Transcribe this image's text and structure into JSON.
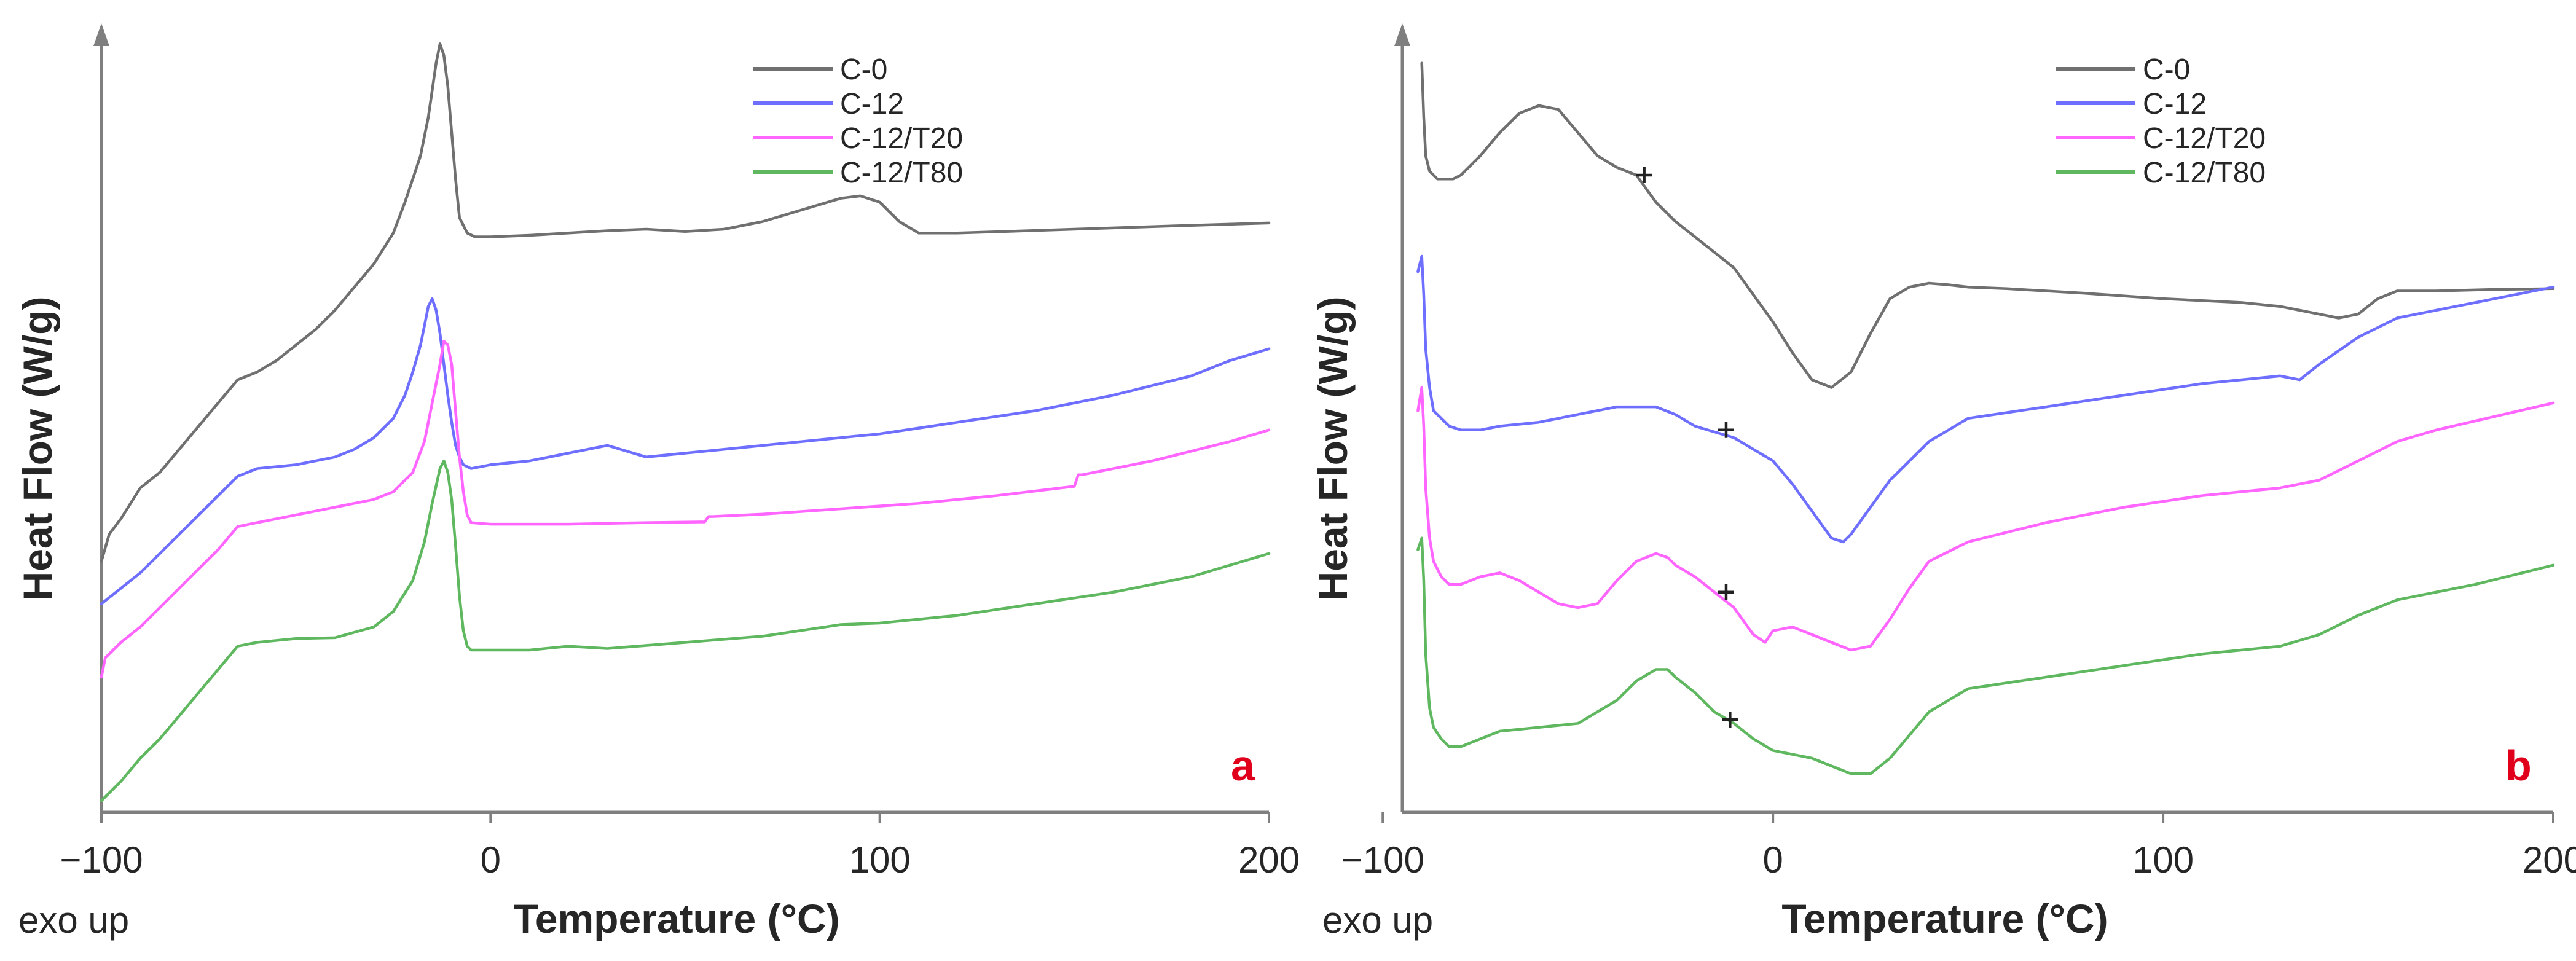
{
  "chart_data": [
    {
      "panel": "a",
      "type": "line",
      "title": "",
      "xlabel": "Temperature (°C)",
      "ylabel": "Heat Flow (W/g)",
      "note": "exo up",
      "xlim": [
        -100,
        200
      ],
      "xticks": [
        -100,
        0,
        100,
        200
      ],
      "ylim": [
        0,
        100
      ],
      "y_scale": "arbitrary units, curves offset vertically (0 = bottom of axis, 100 = top of axis)",
      "legend": [
        "C-0",
        "C-12",
        "C-12/T20",
        "C-12/T80"
      ],
      "legend_position": "top-right",
      "series": [
        {
          "name": "C-0",
          "color": "#707070",
          "x": [
            -100,
            -98,
            -95,
            -90,
            -85,
            -80,
            -75,
            -70,
            -65,
            -60,
            -55,
            -50,
            -45,
            -40,
            -35,
            -30,
            -25,
            -22,
            -20,
            -18,
            -16,
            -14,
            -13,
            -12,
            -11,
            -10,
            -9,
            -8,
            -6,
            -4,
            0,
            10,
            20,
            30,
            40,
            50,
            60,
            70,
            80,
            90,
            95,
            100,
            105,
            110,
            120,
            150,
            180,
            200
          ],
          "y": [
            32.5,
            36,
            38,
            42,
            44,
            47,
            50,
            53,
            56,
            57,
            58.5,
            60.5,
            62.5,
            65,
            68,
            71,
            75,
            79,
            82,
            85,
            90,
            97,
            99.5,
            98,
            94,
            88,
            82,
            77,
            75,
            74.5,
            74.5,
            74.7,
            75,
            75.3,
            75.5,
            75.2,
            75.5,
            76.5,
            78,
            79.5,
            79.8,
            79,
            76.5,
            75,
            75,
            75.5,
            76,
            76.3
          ]
        },
        {
          "name": "C-12",
          "color": "#6f6fff",
          "x": [
            -100,
            -95,
            -90,
            -85,
            -80,
            -75,
            -70,
            -65,
            -60,
            -50,
            -40,
            -35,
            -30,
            -25,
            -22,
            -20,
            -18,
            -17,
            -16,
            -15,
            -14,
            -13,
            -12,
            -11,
            -10,
            -9,
            -8,
            -7,
            -5,
            0,
            10,
            20,
            30,
            40,
            50,
            60,
            80,
            100,
            120,
            140,
            160,
            180,
            190,
            200
          ],
          "y": [
            27,
            29,
            31,
            33.5,
            36,
            38.5,
            41,
            43.5,
            44.5,
            45,
            46,
            47,
            48.5,
            51,
            54,
            57,
            60.5,
            63,
            65.5,
            66.5,
            65,
            62,
            58,
            54,
            50.5,
            47.5,
            46,
            45,
            44.5,
            45,
            45.5,
            46.5,
            47.5,
            46,
            46.5,
            47,
            48,
            49,
            50.5,
            52,
            54,
            56.5,
            58.5,
            60
          ]
        },
        {
          "name": "C-12/T20",
          "color": "#ff66ff",
          "x": [
            -100,
            -99,
            -95,
            -90,
            -85,
            -80,
            -75,
            -70,
            -65,
            -60,
            -50,
            -40,
            -30,
            -25,
            -20,
            -17,
            -15,
            -13,
            -12,
            -11,
            -10,
            -9,
            -8,
            -7,
            -6,
            -5,
            0,
            20,
            40,
            55,
            56,
            57,
            70,
            90,
            110,
            130,
            150,
            151,
            152,
            170,
            190,
            200
          ],
          "y": [
            17.5,
            20,
            22,
            24,
            26.5,
            29,
            31.5,
            34,
            37,
            37.5,
            38.5,
            39.5,
            40.5,
            41.5,
            44,
            48,
            53,
            58,
            61,
            60.5,
            58,
            52,
            46,
            41.5,
            38.5,
            37.5,
            37.3,
            37.3,
            37.5,
            37.6,
            38.3,
            38.3,
            38.6,
            39.3,
            40,
            41,
            42.2,
            43.7,
            43.7,
            45.5,
            48,
            49.5
          ]
        },
        {
          "name": "C-12/T80",
          "color": "#5fb85f",
          "x": [
            -100,
            -95,
            -90,
            -85,
            -80,
            -75,
            -70,
            -65,
            -60,
            -50,
            -40,
            -30,
            -25,
            -20,
            -17,
            -15,
            -13,
            -12,
            -11,
            -10,
            -9,
            -8,
            -7,
            -6,
            -5,
            0,
            10,
            20,
            30,
            50,
            70,
            90,
            100,
            120,
            140,
            160,
            180,
            200
          ],
          "y": [
            1.5,
            4,
            7,
            9.5,
            12.5,
            15.5,
            18.5,
            21.5,
            22,
            22.5,
            22.6,
            24,
            26,
            30,
            35,
            40,
            44.5,
            45.5,
            44,
            40.5,
            34.5,
            28,
            23.5,
            21.5,
            21,
            21,
            21,
            21.5,
            21.2,
            22,
            22.8,
            24.3,
            24.5,
            25.5,
            27,
            28.5,
            30.5,
            33.5
          ]
        }
      ]
    },
    {
      "panel": "b",
      "type": "line",
      "title": "",
      "xlabel": "Temperature (°C)",
      "ylabel": "Heat Flow (W/g)",
      "note": "exo up",
      "xlim": [
        -95,
        200
      ],
      "xticks": [
        -100,
        0,
        100,
        200
      ],
      "ylim": [
        0,
        100
      ],
      "y_scale": "arbitrary units, curves offset vertically (0 = bottom of axis, 100 = top of axis)",
      "legend": [
        "C-0",
        "C-12",
        "C-12/T20",
        "C-12/T80"
      ],
      "legend_position": "top-right",
      "glass_transition_markers": [
        {
          "series": "C-0",
          "x": -33,
          "y": 82.5
        },
        {
          "series": "C-12",
          "x": -12,
          "y": 49.5
        },
        {
          "series": "C-12/T20",
          "x": -12,
          "y": 28.5
        },
        {
          "series": "C-12/T80",
          "x": -11,
          "y": 12
        }
      ],
      "series": [
        {
          "name": "C-0",
          "color": "#707070",
          "x": [
            -90,
            -89.5,
            -89,
            -88,
            -86,
            -84,
            -82,
            -80,
            -75,
            -70,
            -65,
            -60,
            -55,
            -50,
            -45,
            -40,
            -35,
            -30,
            -25,
            -20,
            -10,
            -5,
            0,
            5,
            10,
            15,
            20,
            25,
            30,
            35,
            40,
            45,
            50,
            60,
            80,
            100,
            120,
            130,
            140,
            145,
            150,
            155,
            160,
            170,
            185,
            200
          ],
          "y": [
            97,
            90,
            85,
            83,
            82,
            82,
            82,
            82.5,
            85,
            88,
            90.5,
            91.5,
            91,
            88,
            85,
            83.5,
            82.5,
            79,
            76.5,
            74.5,
            70.5,
            67,
            63.5,
            59.5,
            56,
            55,
            57,
            62,
            66.5,
            68,
            68.5,
            68.3,
            68,
            67.8,
            67.2,
            66.5,
            66,
            65.5,
            64.5,
            64,
            64.5,
            66.5,
            67.5,
            67.5,
            67.7,
            67.8
          ]
        },
        {
          "name": "C-12",
          "color": "#6f6fff",
          "x": [
            -91,
            -90,
            -89.5,
            -89,
            -88,
            -87,
            -85,
            -83,
            -80,
            -75,
            -70,
            -60,
            -50,
            -40,
            -30,
            -25,
            -20,
            -10,
            0,
            5,
            10,
            15,
            18,
            20,
            25,
            30,
            40,
            50,
            70,
            90,
            110,
            130,
            135,
            140,
            150,
            160,
            170,
            180,
            200
          ],
          "y": [
            70,
            72,
            67,
            60,
            55,
            52,
            51,
            50,
            49.5,
            49.5,
            50,
            50.5,
            51.5,
            52.5,
            52.5,
            51.5,
            50,
            48.5,
            45.5,
            42.5,
            39,
            35.5,
            35,
            36,
            39.5,
            43,
            48,
            51,
            52.5,
            54,
            55.5,
            56.5,
            56,
            58,
            61.5,
            64,
            65,
            66,
            68
          ]
        },
        {
          "name": "C-12/T20",
          "color": "#ff66ff",
          "x": [
            -91,
            -90,
            -89.5,
            -89,
            -88,
            -87,
            -85,
            -83,
            -80,
            -75,
            -70,
            -65,
            -60,
            -55,
            -50,
            -45,
            -40,
            -35,
            -30,
            -27,
            -25,
            -20,
            -15,
            -10,
            -5,
            -2,
            0,
            5,
            10,
            15,
            20,
            25,
            30,
            35,
            40,
            50,
            70,
            90,
            110,
            130,
            140,
            150,
            160,
            170,
            200
          ],
          "y": [
            52,
            55,
            50,
            42,
            35.5,
            32.5,
            30.5,
            29.5,
            29.5,
            30.5,
            31,
            30,
            28.5,
            27,
            26.5,
            27,
            30,
            32.5,
            33.5,
            33,
            32,
            30.5,
            28.5,
            26.5,
            23,
            22,
            23.5,
            24,
            23,
            22,
            21,
            21.5,
            25,
            29,
            32.5,
            35,
            37.5,
            39.5,
            41,
            42,
            43,
            45.5,
            48,
            49.5,
            53
          ]
        },
        {
          "name": "C-12/T80",
          "color": "#5fb85f",
          "x": [
            -91,
            -90,
            -89.5,
            -89,
            -88,
            -87,
            -85,
            -83,
            -80,
            -75,
            -70,
            -60,
            -50,
            -45,
            -40,
            -35,
            -30,
            -27,
            -25,
            -20,
            -15,
            -10,
            -5,
            0,
            5,
            10,
            15,
            20,
            25,
            30,
            35,
            40,
            50,
            70,
            90,
            110,
            130,
            140,
            150,
            160,
            180,
            200
          ],
          "y": [
            34,
            35.5,
            30,
            20.5,
            13.5,
            11,
            9.5,
            8.5,
            8.5,
            9.5,
            10.5,
            11,
            11.5,
            13,
            14.5,
            17,
            18.5,
            18.5,
            17.5,
            15.5,
            13,
            11.5,
            9.5,
            8,
            7.5,
            7,
            6,
            5,
            5,
            7,
            10,
            13,
            16,
            17.5,
            19,
            20.5,
            21.5,
            23,
            25.5,
            27.5,
            29.5,
            32
          ]
        }
      ]
    }
  ]
}
